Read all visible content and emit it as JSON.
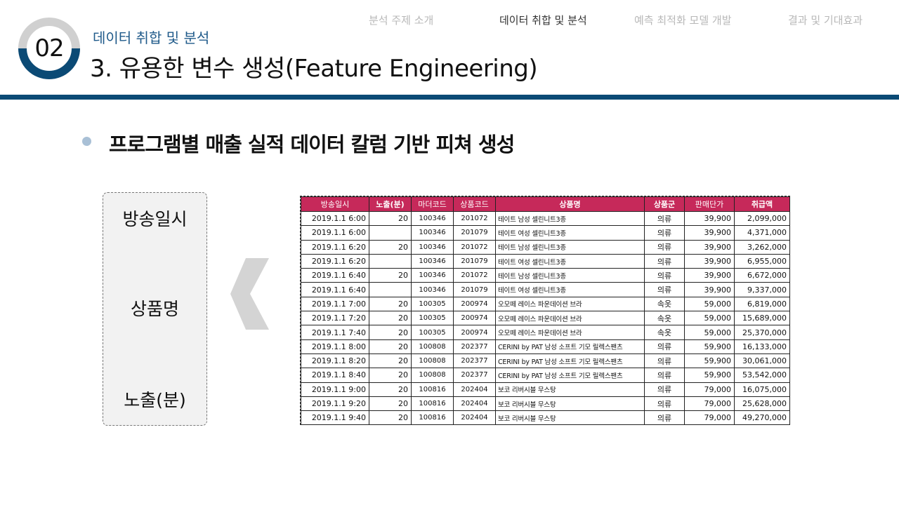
{
  "nav": {
    "items": [
      "분석 주제 소개",
      "데이터 취합 및 분석",
      "예측 최적화 모델 개발",
      "결과 및 기대효과"
    ],
    "active_index": 1
  },
  "section": {
    "number": "02",
    "subtitle": "데이터 취합 및 분석",
    "title": "3. 유용한 변수 생성(Feature Engineering)"
  },
  "bullet": {
    "text": "프로그램별 매출 실적 데이터 칼럼 기반 피쳐 생성"
  },
  "features": [
    "방송일시",
    "상품명",
    "노출(분)"
  ],
  "colors": {
    "accent": "#0b4a75",
    "header_bg": "#c6295a",
    "badge_ring": "#d0d0d0",
    "bullet_dot": "#a9c0d6"
  },
  "table": {
    "headers": [
      "방송일시",
      "노출(분)",
      "마더코드",
      "상품코드",
      "상품명",
      "상품군",
      "판매단가",
      "취급액"
    ],
    "rows": [
      [
        "2019.1.1  6:00",
        "20",
        "100346",
        "201072",
        "테이트 남성 셀린니트3종",
        "의류",
        "39,900",
        "2,099,000"
      ],
      [
        "2019.1.1  6:00",
        "",
        "100346",
        "201079",
        "테이트 여성 셀린니트3종",
        "의류",
        "39,900",
        "4,371,000"
      ],
      [
        "2019.1.1  6:20",
        "20",
        "100346",
        "201072",
        "테이트 남성 셀린니트3종",
        "의류",
        "39,900",
        "3,262,000"
      ],
      [
        "2019.1.1  6:20",
        "",
        "100346",
        "201079",
        "테이트 여성 셀린니트3종",
        "의류",
        "39,900",
        "6,955,000"
      ],
      [
        "2019.1.1  6:40",
        "20",
        "100346",
        "201072",
        "테이트 남성 셀린니트3종",
        "의류",
        "39,900",
        "6,672,000"
      ],
      [
        "2019.1.1  6:40",
        "",
        "100346",
        "201079",
        "테이트 여성 셀린니트3종",
        "의류",
        "39,900",
        "9,337,000"
      ],
      [
        "2019.1.1  7:00",
        "20",
        "100305",
        "200974",
        "오모떼 레이스 파운데이션 브라",
        "속옷",
        "59,000",
        "6,819,000"
      ],
      [
        "2019.1.1  7:20",
        "20",
        "100305",
        "200974",
        "오모떼 레이스 파운데이션 브라",
        "속옷",
        "59,000",
        "15,689,000"
      ],
      [
        "2019.1.1  7:40",
        "20",
        "100305",
        "200974",
        "오모떼 레이스 파운데이션 브라",
        "속옷",
        "59,000",
        "25,370,000"
      ],
      [
        "2019.1.1  8:00",
        "20",
        "100808",
        "202377",
        "CERINI by PAT 남성 소프트 기모 릴렉스팬츠",
        "의류",
        "59,900",
        "16,133,000"
      ],
      [
        "2019.1.1  8:20",
        "20",
        "100808",
        "202377",
        "CERINI by PAT 남성 소프트 기모 릴렉스팬츠",
        "의류",
        "59,900",
        "30,061,000"
      ],
      [
        "2019.1.1  8:40",
        "20",
        "100808",
        "202377",
        "CERINI by PAT 남성 소프트 기모 릴렉스팬츠",
        "의류",
        "59,900",
        "53,542,000"
      ],
      [
        "2019.1.1  9:00",
        "20",
        "100816",
        "202404",
        "보코 리버시블 무스탕",
        "의류",
        "79,000",
        "16,075,000"
      ],
      [
        "2019.1.1  9:20",
        "20",
        "100816",
        "202404",
        "보코 리버시블 무스탕",
        "의류",
        "79,000",
        "25,628,000"
      ],
      [
        "2019.1.1  9:40",
        "20",
        "100816",
        "202404",
        "보코 리버시블 무스탕",
        "의류",
        "79,000",
        "49,270,000"
      ]
    ]
  }
}
